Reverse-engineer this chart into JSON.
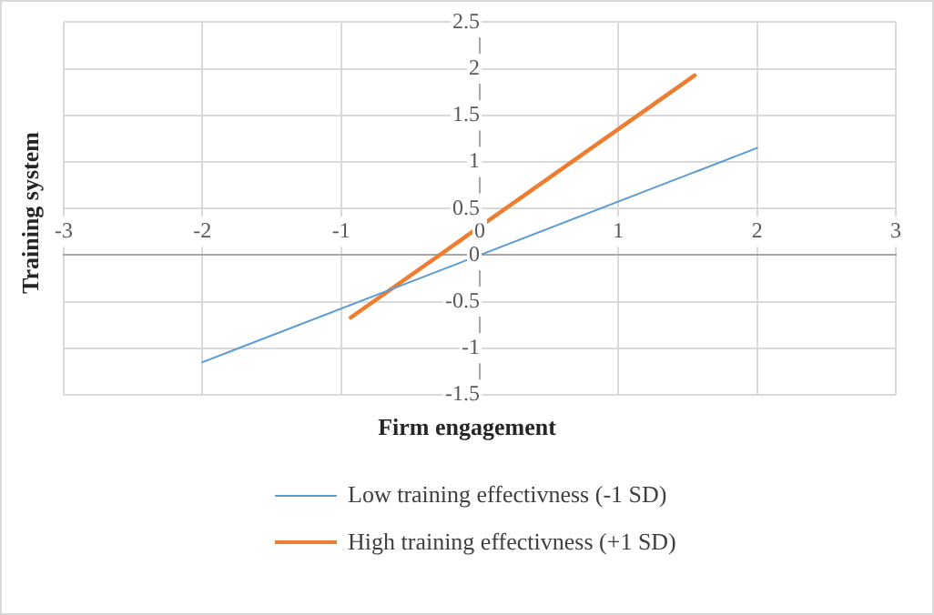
{
  "chart_data": {
    "type": "line",
    "xlabel": "Firm engagement",
    "ylabel": "Training system",
    "xlim": [
      -3,
      3
    ],
    "xticks": [
      -3,
      -2,
      -1,
      0,
      1,
      2,
      3
    ],
    "ylim": [
      -1.5,
      2.5
    ],
    "yticks": [
      -1.5,
      -1,
      -0.5,
      0,
      0.5,
      1,
      1.5,
      2,
      2.5
    ],
    "grid": true,
    "legend": "bottom",
    "series": [
      {
        "name": "Low training effectivness (-1 SD)",
        "color": "#5b9bd5",
        "x": [
          -2,
          2
        ],
        "values": [
          -1.15,
          1.15
        ]
      },
      {
        "name": "High training effectivness (+1 SD)",
        "color": "#ed7d31",
        "x": [
          -0.93,
          1.55
        ],
        "values": [
          -0.67,
          1.93
        ]
      }
    ]
  }
}
